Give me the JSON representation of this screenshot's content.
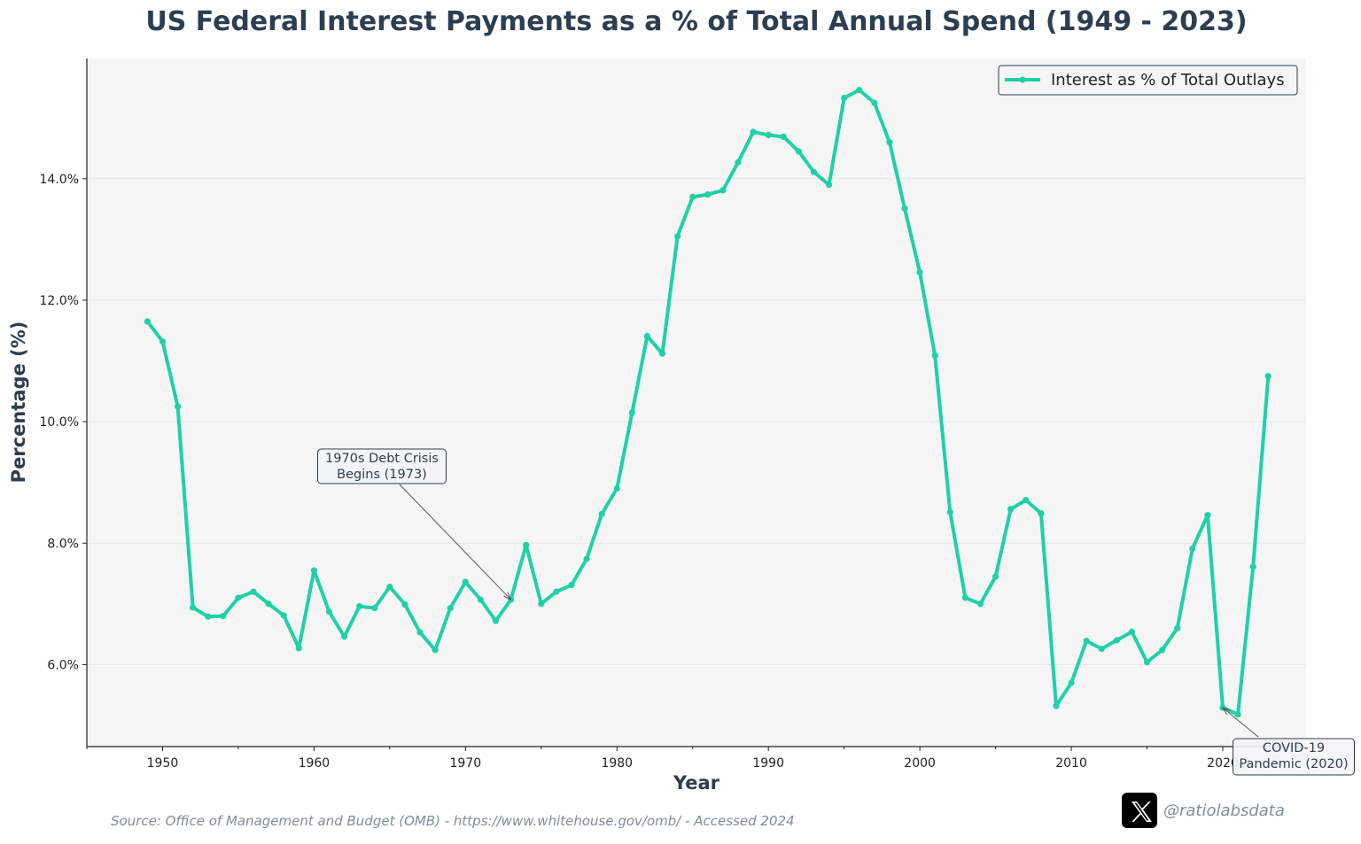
{
  "chart_data": {
    "type": "line",
    "title": "US Federal Interest Payments as a % of Total Annual Spend (1949 - 2023)",
    "xlabel": "Year",
    "ylabel": "Percentage (%)",
    "xlim": [
      1945,
      2025.5
    ],
    "ylim": [
      4.65,
      15.98
    ],
    "x_ticks": [
      1950,
      1960,
      1970,
      1980,
      1990,
      2000,
      2010,
      2020
    ],
    "y_ticks": [
      6.0,
      8.0,
      10.0,
      12.0,
      14.0
    ],
    "y_tick_labels": [
      "6.0%",
      "8.0%",
      "10.0%",
      "12.0%",
      "14.0%"
    ],
    "grid": "horizontal, light",
    "legend_position": "top-right",
    "series": [
      {
        "name": "Interest as % of Total Outlays",
        "color": "#1fd1a6",
        "x": [
          1949,
          1950,
          1951,
          1952,
          1953,
          1954,
          1955,
          1956,
          1957,
          1958,
          1959,
          1960,
          1961,
          1962,
          1963,
          1964,
          1965,
          1966,
          1967,
          1968,
          1969,
          1970,
          1971,
          1972,
          1973,
          1974,
          1975,
          1976,
          1977,
          1978,
          1979,
          1980,
          1981,
          1982,
          1983,
          1984,
          1985,
          1986,
          1987,
          1988,
          1989,
          1990,
          1991,
          1992,
          1993,
          1994,
          1995,
          1996,
          1997,
          1998,
          1999,
          2000,
          2001,
          2002,
          2003,
          2004,
          2005,
          2006,
          2007,
          2008,
          2009,
          2010,
          2011,
          2012,
          2013,
          2014,
          2015,
          2016,
          2017,
          2018,
          2019,
          2020,
          2021,
          2022,
          2023
        ],
        "values": [
          11.65,
          11.32,
          10.25,
          6.94,
          6.79,
          6.8,
          7.1,
          7.2,
          7.0,
          6.81,
          6.27,
          7.55,
          6.87,
          6.46,
          6.96,
          6.93,
          7.28,
          6.99,
          6.53,
          6.24,
          6.93,
          7.36,
          7.07,
          6.72,
          7.07,
          7.97,
          7.0,
          7.2,
          7.31,
          7.74,
          8.48,
          8.9,
          10.15,
          11.41,
          11.12,
          13.05,
          13.7,
          13.74,
          13.81,
          14.27,
          14.77,
          14.72,
          14.69,
          14.45,
          14.11,
          13.9,
          15.33,
          15.46,
          15.25,
          14.6,
          13.51,
          12.46,
          11.09,
          8.51,
          7.1,
          7.0,
          7.45,
          8.56,
          8.71,
          8.49,
          5.32,
          5.7,
          6.39,
          6.26,
          6.4,
          6.54,
          6.04,
          6.24,
          6.6,
          7.91,
          8.46,
          5.29,
          5.18,
          7.61,
          10.75
        ]
      }
    ],
    "annotations": [
      {
        "text_lines": [
          "1970s Debt Crisis",
          "Begins (1973)"
        ],
        "x": 1973,
        "y": 7.07
      },
      {
        "text_lines": [
          "COVID-19",
          "Pandemic (2020)"
        ],
        "x": 2020,
        "y": 5.29
      }
    ]
  },
  "source_text": "Source: Office of Management and Budget (OMB) - https://www.whitehouse.gov/omb/ - Accessed 2024",
  "social": {
    "icon": "x-logo-icon",
    "handle": "@ratiolabsdata"
  }
}
